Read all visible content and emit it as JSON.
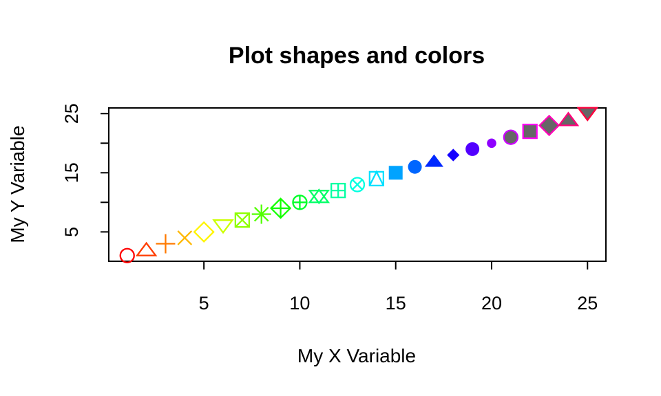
{
  "chart_data": {
    "type": "scatter",
    "title": "Plot shapes and colors",
    "xlabel": "My X Variable",
    "ylabel": "My Y Variable",
    "xlim": [
      0.04,
      25.96
    ],
    "ylim": [
      0.04,
      25.96
    ],
    "x_ticks": [
      5,
      10,
      15,
      20,
      25
    ],
    "y_ticks": [
      5,
      10,
      15,
      20,
      25
    ],
    "y_tick_labels": [
      5,
      15,
      25
    ],
    "grid": false,
    "legend": "none",
    "series": [
      {
        "x": [
          1,
          2,
          3,
          4,
          5,
          6,
          7,
          8,
          9,
          10,
          11,
          12,
          13,
          14,
          15,
          16,
          17,
          18,
          19,
          20,
          21,
          22,
          23,
          24,
          25
        ],
        "y": [
          1,
          2,
          3,
          4,
          5,
          6,
          7,
          8,
          9,
          10,
          11,
          12,
          13,
          14,
          15,
          16,
          17,
          18,
          19,
          20,
          21,
          22,
          23,
          24,
          25
        ],
        "pch": [
          1,
          2,
          3,
          4,
          5,
          6,
          7,
          8,
          9,
          10,
          11,
          12,
          13,
          14,
          15,
          16,
          17,
          18,
          19,
          20,
          21,
          22,
          23,
          24,
          25
        ],
        "colors": [
          "#ff0000",
          "#ff3d00",
          "#ff7a00",
          "#ffb800",
          "#fff500",
          "#ccff00",
          "#8fff00",
          "#52ff00",
          "#14ff00",
          "#00ff29",
          "#00ff66",
          "#00ffa3",
          "#00ffe0",
          "#00e0ff",
          "#00a3ff",
          "#0066ff",
          "#0029ff",
          "#1400ff",
          "#5200ff",
          "#8f00ff",
          "#cc00ff",
          "#ff00f5",
          "#ff00b8",
          "#ff007a",
          "#ff003d"
        ],
        "fill_color": "#666666"
      }
    ]
  }
}
